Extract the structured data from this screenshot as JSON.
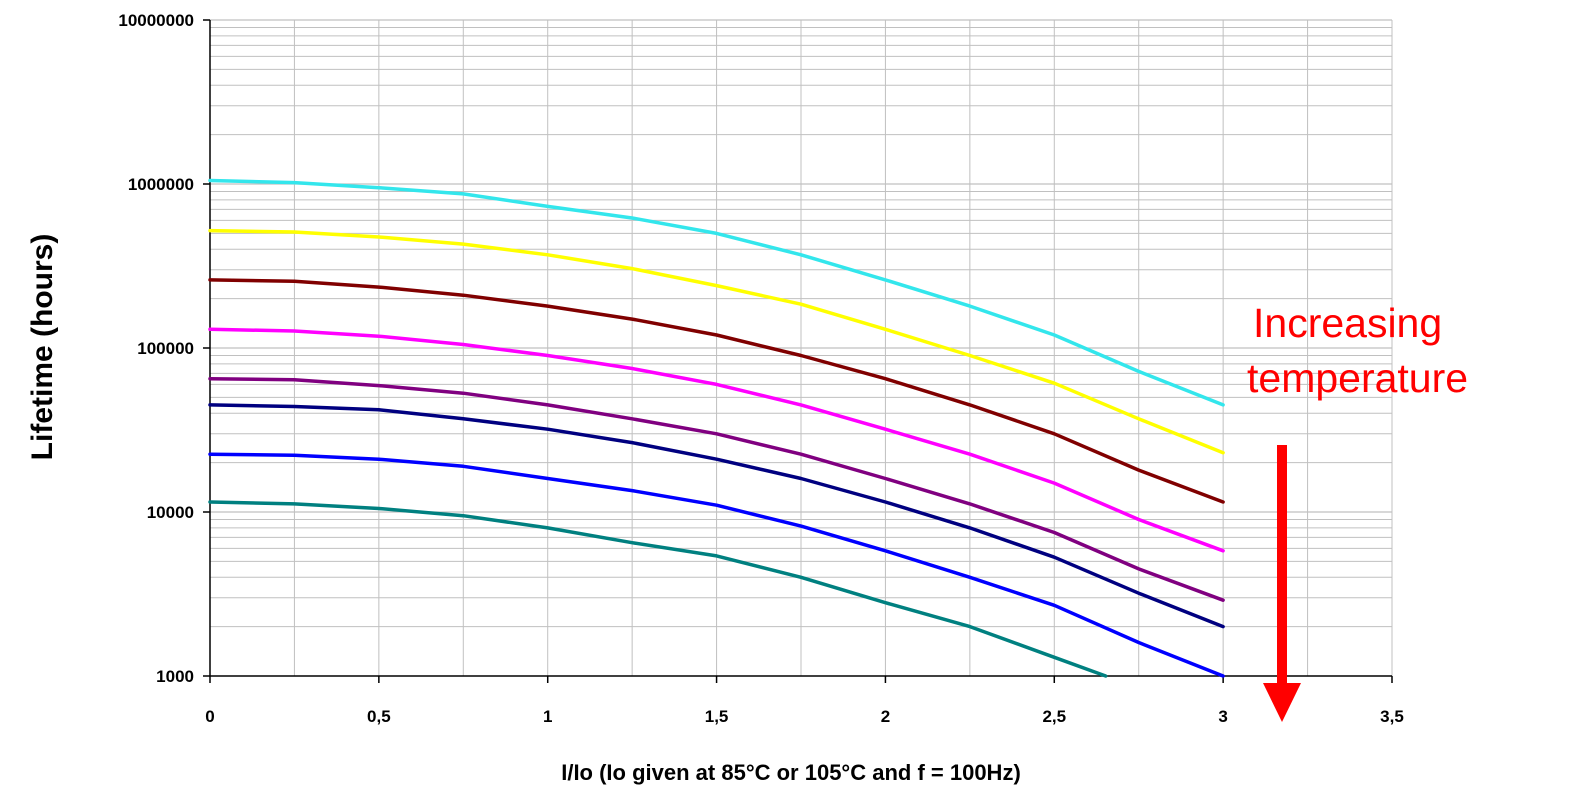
{
  "chart_data": {
    "type": "line",
    "title": "",
    "xlabel": "I/Io (Io given at 85°C or 105°C and f = 100Hz)",
    "ylabel": "Lifetime (hours)",
    "xlim": [
      0,
      3.5
    ],
    "ylim": [
      1000,
      10000000
    ],
    "yscale": "log",
    "grid": true,
    "legend": "none",
    "x_ticks": [
      "0",
      "0,5",
      "1",
      "1,5",
      "2",
      "2,5",
      "3",
      "3,5"
    ],
    "y_ticks": [
      "1000",
      "10000",
      "100000",
      "1000000",
      "10000000"
    ],
    "x": [
      0,
      0.25,
      0.5,
      0.75,
      1,
      1.25,
      1.5,
      1.75,
      2,
      2.25,
      2.5,
      2.75,
      3
    ],
    "series": [
      {
        "color": "#33e6ec",
        "values": [
          1050000,
          1020000,
          950000,
          870000,
          730000,
          620000,
          500000,
          370000,
          260000,
          180000,
          120000,
          72000,
          45000
        ]
      },
      {
        "color": "#ffff00",
        "values": [
          520000,
          510000,
          475000,
          430000,
          370000,
          305000,
          240000,
          185000,
          130000,
          90000,
          61000,
          37000,
          23000
        ]
      },
      {
        "color": "#800000",
        "values": [
          260000,
          255000,
          235000,
          210000,
          180000,
          150000,
          120000,
          90000,
          65000,
          45000,
          30000,
          18000,
          11500
        ]
      },
      {
        "color": "#ff00ff",
        "values": [
          130000,
          127000,
          118000,
          105000,
          90000,
          75000,
          60000,
          45000,
          32000,
          22500,
          15000,
          9000,
          5800
        ]
      },
      {
        "color": "#800080",
        "values": [
          65000,
          64000,
          59000,
          53000,
          45000,
          37000,
          30000,
          22500,
          16000,
          11200,
          7500,
          4500,
          2900
        ]
      },
      {
        "color": "#000080",
        "values": [
          45000,
          44000,
          42000,
          37000,
          32000,
          26500,
          21000,
          16000,
          11500,
          8000,
          5300,
          3200,
          2000
        ]
      },
      {
        "color": "#0000ff",
        "values": [
          22500,
          22200,
          21000,
          19000,
          16000,
          13500,
          11000,
          8200,
          5800,
          4000,
          2700,
          1600,
          1000
        ]
      },
      {
        "color": "#008080",
        "values": [
          11500,
          11200,
          10500,
          9500,
          8000,
          6500,
          5400,
          4000,
          2800,
          2000,
          1300,
          null,
          null
        ]
      }
    ],
    "annotations": [
      {
        "text": "Increasing temperature",
        "lines": [
          "Increasing",
          "temperature"
        ],
        "color": "#ff0000"
      }
    ],
    "colors": {
      "gridline": "#c0c0c0",
      "axis": "#000000",
      "annotation": "#ff0000"
    }
  }
}
